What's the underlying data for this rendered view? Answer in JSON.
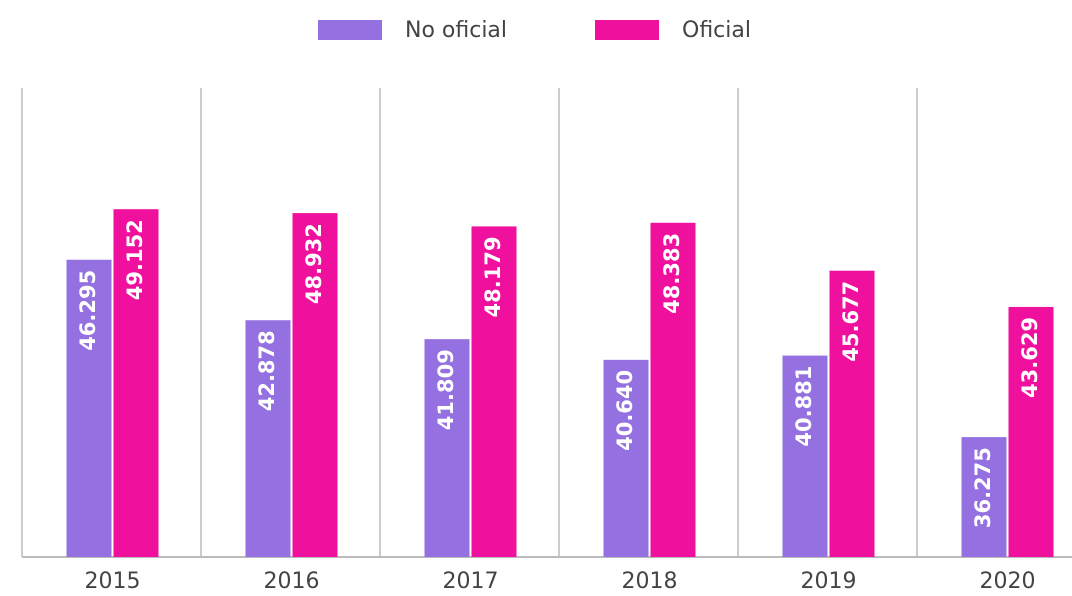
{
  "chart_data": {
    "type": "bar",
    "categories": [
      "2015",
      "2016",
      "2017",
      "2018",
      "2019",
      "2020"
    ],
    "series": [
      {
        "name": "No oficial",
        "color": "#9470e0",
        "values": [
          46.295,
          42.878,
          41.809,
          40.64,
          40.881,
          36.275
        ],
        "value_labels": [
          "46.295",
          "42.878",
          "41.809",
          "40.640",
          "40.881",
          "36.275"
        ]
      },
      {
        "name": "Oficial",
        "color": "#f0109e",
        "values": [
          49.152,
          48.932,
          48.179,
          48.383,
          45.677,
          43.629
        ],
        "value_labels": [
          "49.152",
          "48.932",
          "48.179",
          "48.383",
          "45.677",
          "43.629"
        ]
      }
    ],
    "ylim": [
      29.5,
      56
    ],
    "legend": "top"
  }
}
